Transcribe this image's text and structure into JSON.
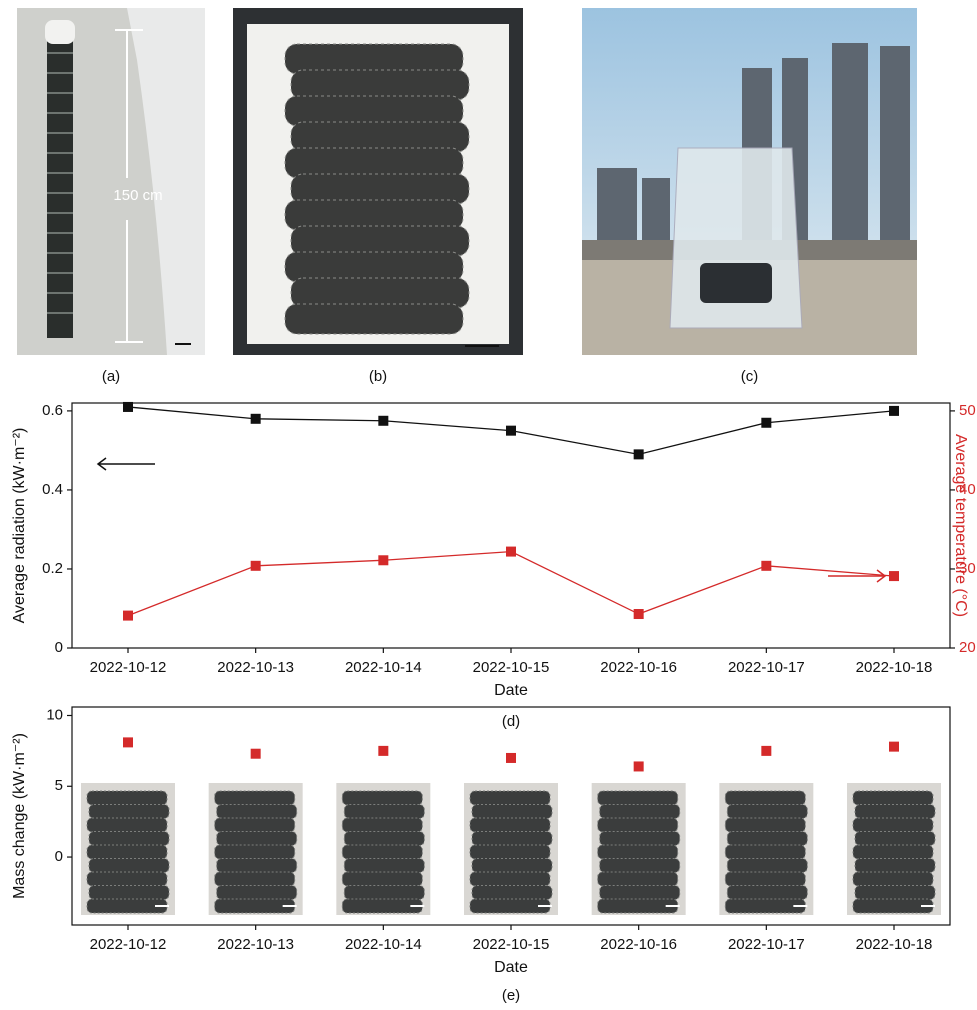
{
  "photos": [
    {
      "label": "(a)",
      "annotation": "150 cm"
    },
    {
      "label": "(b)"
    },
    {
      "label": "(c)"
    }
  ],
  "chart_data": [
    {
      "type": "line",
      "caption": "(d)",
      "x_label": "Date",
      "y_label": "Average radiation (kW·m⁻²)",
      "y2_label": "Average temperature (°C)",
      "categories": [
        "2022-10-12",
        "2022-10-13",
        "2022-10-14",
        "2022-10-15",
        "2022-10-16",
        "2022-10-17",
        "2022-10-18"
      ],
      "series": [
        {
          "color": "#111111",
          "values": [
            0.61,
            0.58,
            0.575,
            0.55,
            0.49,
            0.57,
            0.6
          ]
        },
        {
          "color": "#d42a2a",
          "axis": "y2",
          "values": [
            24.1,
            30.4,
            31.1,
            32.2,
            24.3,
            30.4,
            29.1
          ]
        }
      ],
      "ylim": [
        0,
        0.62
      ],
      "yticks": [
        0,
        0.2,
        0.4,
        0.6
      ],
      "y2lim": [
        20,
        51
      ],
      "y2ticks": [
        20,
        30,
        40,
        50
      ]
    },
    {
      "type": "scatter",
      "caption": "(e)",
      "x_label": "Date",
      "y_label": "Mass change (kW·m⁻²)",
      "categories": [
        "2022-10-12",
        "2022-10-13",
        "2022-10-14",
        "2022-10-15",
        "2022-10-16",
        "2022-10-17",
        "2022-10-18"
      ],
      "values": [
        8.1,
        7.3,
        7.5,
        7.0,
        6.4,
        7.5,
        7.8
      ],
      "color": "#d42a2a",
      "ylim": [
        -4.8,
        10.6
      ],
      "yticks": [
        0,
        5,
        10
      ]
    }
  ]
}
